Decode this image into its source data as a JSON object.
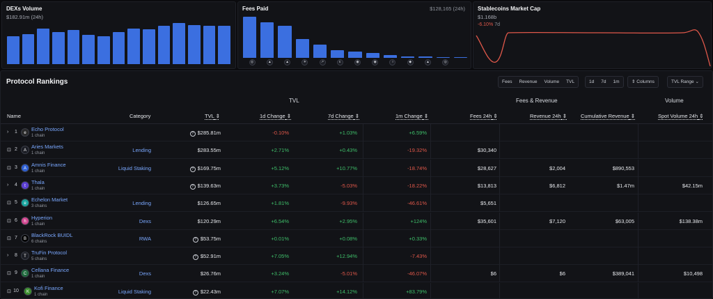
{
  "cards": {
    "dex": {
      "title": "DEXs Volume",
      "sub": "$182.91m (24h)",
      "bars": [
        0.66,
        0.7,
        0.84,
        0.76,
        0.8,
        0.69,
        0.65,
        0.76,
        0.84,
        0.82,
        0.91,
        0.96,
        0.92,
        0.91,
        0.91
      ]
    },
    "fees": {
      "title": "Fees Paid",
      "right": "$128,165 (24h)",
      "bars": [
        0.95,
        0.82,
        0.74,
        0.44,
        0.3,
        0.18,
        0.14,
        0.11,
        0.07,
        0.04,
        0.03,
        0.02,
        0.01
      ],
      "chain_icons": [
        "aptos-logo-icon",
        "aries-logo-icon",
        "amnis-logo-icon",
        "thala-logo-icon",
        "merkle-logo-icon",
        "echelon-logo-icon",
        "kana-logo-icon",
        "liquidswap-logo-icon",
        "hyperion-logo-icon",
        "cellana-logo-icon",
        "panora-logo-icon",
        "emojicoin-logo-icon"
      ]
    },
    "stable": {
      "title": "Stablecoins Market Cap",
      "sub": "$1.168b",
      "change": "-6.10%",
      "period": "7d"
    }
  },
  "rankings": {
    "title": "Protocol Rankings",
    "toolbar": {
      "fees": "Fees",
      "revenue": "Revenue",
      "volume": "Volume",
      "tvl": "TVL",
      "d1": "1d",
      "d7": "7d",
      "m1": "1m",
      "columns": "Columns",
      "tvl_range": "TVL Range"
    },
    "groups": {
      "tvl": "TVL",
      "fees_revenue": "Fees & Revenue",
      "volume": "Volume"
    },
    "columns": {
      "name": "Name",
      "category": "Category",
      "tvl": "TVL",
      "change_1d": "1d Change",
      "change_7d": "7d Change",
      "change_1m": "1m Change",
      "fees_24h": "Fees 24h",
      "revenue_24h": "Revenue 24h",
      "cumulative_revenue": "Cumulative Revenue",
      "spot_volume_24h": "Spot Volume 24h"
    },
    "rows": [
      {
        "rank": "1",
        "expand": "›",
        "name": "Echo Protocol",
        "chains": "1 chain",
        "category": "",
        "tvl": "$285.81m",
        "tvl_q": true,
        "c1d": "-0.10%",
        "c7d": "+1.03%",
        "c1m": "+6.59%",
        "fees": "",
        "revenue": "",
        "cumrev": "",
        "spot": "",
        "logo_color": "#2a2a2a",
        "logo_char": "e"
      },
      {
        "rank": "2",
        "expand": "⊡",
        "name": "Aries Markets",
        "chains": "1 chain",
        "category": "Lending",
        "tvl": "$283.55m",
        "tvl_q": false,
        "c1d": "+2.71%",
        "c7d": "+0.43%",
        "c1m": "-19.32%",
        "fees": "$30,340",
        "revenue": "",
        "cumrev": "",
        "spot": "",
        "logo_color": "#1b1d24",
        "logo_char": "A"
      },
      {
        "rank": "3",
        "expand": "⊡",
        "name": "Amnis Finance",
        "chains": "1 chain",
        "category": "Liquid Staking",
        "tvl": "$169.75m",
        "tvl_q": true,
        "c1d": "+5.12%",
        "c7d": "+10.77%",
        "c1m": "-18.74%",
        "fees": "$28,627",
        "revenue": "$2,004",
        "cumrev": "$890,553",
        "spot": "",
        "logo_color": "#2d5fd3",
        "logo_char": "A"
      },
      {
        "rank": "4",
        "expand": "›",
        "name": "Thala",
        "chains": "1 chain",
        "category": "",
        "tvl": "$139.63m",
        "tvl_q": true,
        "c1d": "+3.73%",
        "c7d": "-5.03%",
        "c1m": "-18.22%",
        "fees": "$13,813",
        "revenue": "$6,812",
        "cumrev": "$1.47m",
        "spot": "$42.15m",
        "logo_color": "#5b3fd1",
        "logo_char": "t"
      },
      {
        "rank": "5",
        "expand": "⊡",
        "name": "Echelon Market",
        "chains": "3 chains",
        "category": "Lending",
        "tvl": "$126.65m",
        "tvl_q": false,
        "c1d": "+1.81%",
        "c7d": "-9.93%",
        "c1m": "-46.61%",
        "fees": "$5,651",
        "revenue": "",
        "cumrev": "",
        "spot": "",
        "logo_color": "#1aa6a0",
        "logo_char": "e"
      },
      {
        "rank": "6",
        "expand": "⊡",
        "name": "Hyperion",
        "chains": "1 chain",
        "category": "Dexs",
        "tvl": "$120.29m",
        "tvl_q": false,
        "c1d": "+6.54%",
        "c7d": "+2.95%",
        "c1m": "+124%",
        "fees": "$35,601",
        "revenue": "$7,120",
        "cumrev": "$63,005",
        "spot": "$138.38m",
        "logo_color": "#d1468f",
        "logo_char": "h"
      },
      {
        "rank": "7",
        "expand": "⊡",
        "name": "BlackRock BUIDL",
        "chains": "6 chains",
        "category": "RWA",
        "tvl": "$53.75m",
        "tvl_q": true,
        "c1d": "+0.01%",
        "c7d": "+0.08%",
        "c1m": "+0.33%",
        "fees": "",
        "revenue": "",
        "cumrev": "",
        "spot": "",
        "logo_color": "#000000",
        "logo_char": "B"
      },
      {
        "rank": "8",
        "expand": "›",
        "name": "TruFin Protocol",
        "chains": "5 chains",
        "category": "",
        "tvl": "$52.91m",
        "tvl_q": true,
        "c1d": "+7.05%",
        "c7d": "+12.94%",
        "c1m": "-7.43%",
        "fees": "",
        "revenue": "",
        "cumrev": "",
        "spot": "",
        "logo_color": "#1c1e25",
        "logo_char": "T"
      },
      {
        "rank": "9",
        "expand": "⊡",
        "name": "Cellana Finance",
        "chains": "1 chain",
        "category": "Dexs",
        "tvl": "$26.76m",
        "tvl_q": false,
        "c1d": "+3.24%",
        "c7d": "-5.01%",
        "c1m": "-46.07%",
        "fees": "$6",
        "revenue": "$6",
        "cumrev": "$389,041",
        "spot": "$10,498",
        "logo_color": "#1f6b3d",
        "logo_char": "C"
      },
      {
        "rank": "10",
        "expand": "⊡",
        "name": "Kofi Finance",
        "chains": "1 chain",
        "category": "Liquid Staking",
        "tvl": "$22.43m",
        "tvl_q": true,
        "c1d": "+7.07%",
        "c7d": "+14.12%",
        "c1m": "+83.79%",
        "fees": "",
        "revenue": "",
        "cumrev": "",
        "spot": "",
        "logo_color": "#3d8f2e",
        "logo_char": "K"
      }
    ]
  }
}
